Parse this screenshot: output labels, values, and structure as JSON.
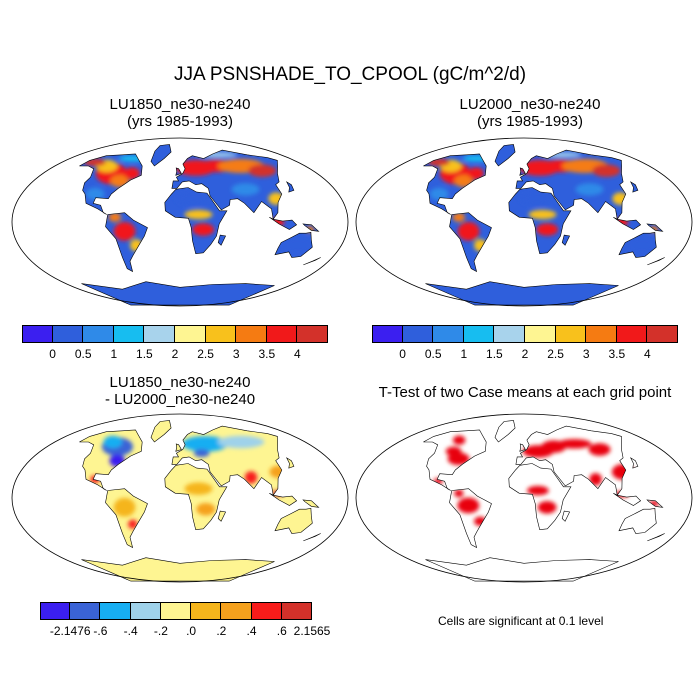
{
  "figure": {
    "title": "JJA PSNSHADE_TO_CPOOL (gC/m^2/d)"
  },
  "panels": {
    "top_left": {
      "line1": "LU1850_ne30-ne240",
      "line2": "(yrs 1985-1993)"
    },
    "top_right": {
      "line1": "LU2000_ne30-ne240",
      "line2": "(yrs 1985-1993)"
    },
    "bottom_left": {
      "line1": "LU1850_ne30-ne240",
      "line2": "- LU2000_ne30-ne240"
    },
    "bottom_right": {
      "line1": "T-Test of two Case means at each grid point"
    }
  },
  "colorbars": {
    "absolute": {
      "colors": [
        "#3b1ff0",
        "#2f5fdc",
        "#2f8ae8",
        "#17bdf0",
        "#a8d3ec",
        "#fef592",
        "#f8c11c",
        "#f57b12",
        "#f1191a",
        "#d3312a"
      ],
      "labels": [
        "0",
        "0.5",
        "1",
        "1.5",
        "2",
        "2.5",
        "3",
        "3.5",
        "4"
      ]
    },
    "difference": {
      "colors": [
        "#3b1ff0",
        "#3a63d6",
        "#17aef2",
        "#9fd2ea",
        "#fef592",
        "#f5b51c",
        "#f5a11d",
        "#f81c1a",
        "#d3312a"
      ],
      "labels": [
        "-2.1476",
        "-.6",
        "-.4",
        "-.2",
        ".0",
        ".2",
        ".4",
        ".6",
        "2.1565"
      ]
    }
  },
  "note": "Cells are significant at 0.1 level",
  "chart_data": [
    {
      "type": "heatmap",
      "title": "LU1850_ne30-ne240 (yrs 1985-1993)",
      "units": "gC/m^2/d",
      "levels": [
        0,
        0.5,
        1,
        1.5,
        2,
        2.5,
        3,
        3.5,
        4
      ],
      "colormap": [
        "#3b1ff0",
        "#2f5fdc",
        "#2f8ae8",
        "#17bdf0",
        "#a8d3ec",
        "#fef592",
        "#f8c11c",
        "#f57b12",
        "#f1191a",
        "#d3312a"
      ]
    },
    {
      "type": "heatmap",
      "title": "LU2000_ne30-ne240 (yrs 1985-1993)",
      "units": "gC/m^2/d",
      "levels": [
        0,
        0.5,
        1,
        1.5,
        2,
        2.5,
        3,
        3.5,
        4
      ],
      "colormap": [
        "#3b1ff0",
        "#2f5fdc",
        "#2f8ae8",
        "#17bdf0",
        "#a8d3ec",
        "#fef592",
        "#f8c11c",
        "#f57b12",
        "#f1191a",
        "#d3312a"
      ]
    },
    {
      "type": "heatmap",
      "title": "LU1850_ne30-ne240 - LU2000_ne30-ne240",
      "levels": [
        -2.1476,
        -0.6,
        -0.4,
        -0.2,
        0.0,
        0.2,
        0.4,
        0.6,
        2.1565
      ],
      "colormap": [
        "#3b1ff0",
        "#3a63d6",
        "#17aef2",
        "#9fd2ea",
        "#fef592",
        "#f5b51c",
        "#f5a11d",
        "#f81c1a",
        "#d3312a"
      ]
    },
    {
      "type": "heatmap",
      "title": "T-Test of two Case means at each grid point",
      "significance_level": 0.1,
      "significant_color": "#e8000b"
    }
  ]
}
